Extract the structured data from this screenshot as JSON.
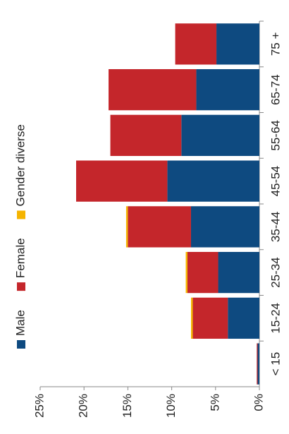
{
  "chart_data": {
    "type": "bar",
    "stacked": true,
    "categories": [
      "< 15",
      "15-24",
      "25-34",
      "35-44",
      "45-54",
      "55-64",
      "65-74",
      "75 +"
    ],
    "series": [
      {
        "name": "Male",
        "color": "#0e4a80",
        "values": [
          0.2,
          3.6,
          4.7,
          7.8,
          10.5,
          8.9,
          7.2,
          4.9
        ]
      },
      {
        "name": "Female",
        "color": "#c4262b",
        "values": [
          0.1,
          4.0,
          3.5,
          7.2,
          10.4,
          8.1,
          10.0,
          4.7
        ]
      },
      {
        "name": "Gender diverse",
        "color": "#f5b400",
        "values": [
          0,
          0.2,
          0.2,
          0.2,
          0,
          0,
          0,
          0
        ]
      }
    ],
    "ylim": [
      0,
      25
    ],
    "yticks": [
      {
        "value": 0,
        "label": "0%"
      },
      {
        "value": 5,
        "label": "5%"
      },
      {
        "value": 10,
        "label": "10%"
      },
      {
        "value": 15,
        "label": "15%"
      },
      {
        "value": 20,
        "label": "20%"
      },
      {
        "value": 25,
        "label": "25%"
      }
    ]
  }
}
